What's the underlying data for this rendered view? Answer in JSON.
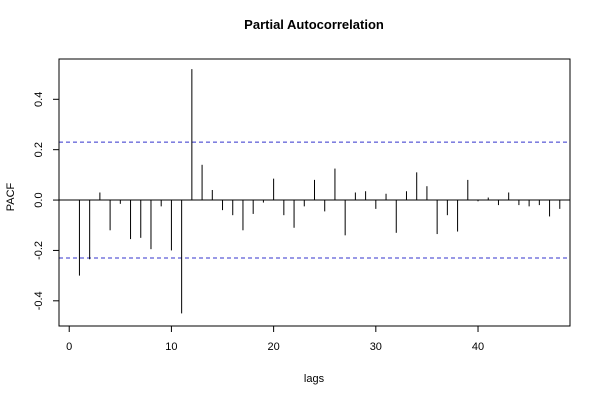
{
  "chart_data": {
    "type": "bar",
    "title": "Partial Autocorrelation",
    "xlabel": "lags",
    "ylabel": "PACF",
    "xlim": [
      -1,
      49
    ],
    "ylim": [
      -0.5,
      0.56
    ],
    "x_ticks": [
      0,
      10,
      20,
      30,
      40
    ],
    "x_tick_labels": [
      "0",
      "10",
      "20",
      "30",
      "40"
    ],
    "y_ticks": [
      -0.4,
      -0.2,
      0.0,
      0.2,
      0.4
    ],
    "y_tick_labels": [
      "-0.4",
      "-0.2",
      "0.0",
      "0.2",
      "0.4"
    ],
    "confidence_bound": 0.23,
    "confidence_color": "#3333cc",
    "line_color": "#000000",
    "grid": false,
    "lags": [
      1,
      2,
      3,
      4,
      5,
      6,
      7,
      8,
      9,
      10,
      11,
      12,
      13,
      14,
      15,
      16,
      17,
      18,
      19,
      20,
      21,
      22,
      23,
      24,
      25,
      26,
      27,
      28,
      29,
      30,
      31,
      32,
      33,
      34,
      35,
      36,
      37,
      38,
      39,
      40,
      41,
      42,
      43,
      44,
      45,
      46,
      47,
      48
    ],
    "values": [
      -0.3,
      -0.235,
      0.03,
      -0.12,
      -0.015,
      -0.155,
      -0.15,
      -0.195,
      -0.025,
      -0.2,
      -0.45,
      0.52,
      0.14,
      0.04,
      -0.04,
      -0.06,
      -0.12,
      -0.055,
      -0.01,
      0.085,
      -0.06,
      -0.11,
      -0.025,
      0.08,
      -0.045,
      0.125,
      -0.14,
      0.03,
      0.035,
      -0.035,
      0.025,
      -0.13,
      0.035,
      0.11,
      0.055,
      -0.135,
      -0.06,
      -0.125,
      0.08,
      -0.005,
      0.01,
      -0.02,
      0.03,
      -0.02,
      -0.025,
      -0.02,
      -0.065,
      -0.035
    ]
  }
}
